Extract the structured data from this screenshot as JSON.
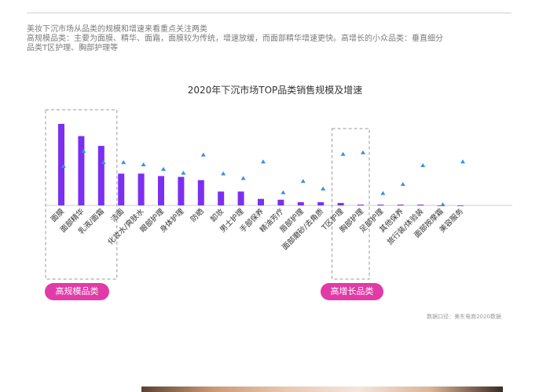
{
  "intro": {
    "line1": "美妆下沉市场从品类的规模和增速来看重点关注两类",
    "line2": "高规模品类：主要为面膜、精华、面霜，面膜较为传统，增速放缓，而面部精华增速更快。高增长的小众品类：垂直细分",
    "line3": "品类T区护理、胸部护理等"
  },
  "chart_data": {
    "type": "bar",
    "title": "2020年下沉市场TOP品类销售规模及增速",
    "categories": [
      "面膜",
      "面部精华",
      "乳液/面霜",
      "洁面",
      "化妆水/爽肤水",
      "眼部护理",
      "身体护理",
      "防晒",
      "卸妆",
      "男士护理",
      "手部保养",
      "精油芳疗",
      "唇部护理",
      "面部磨砂/去角质",
      "T区护理",
      "胸部护理",
      "足部护理",
      "其他保养",
      "旅行装/体验装",
      "面部按摩霜",
      "美容服务"
    ],
    "series": [
      {
        "values": [
          100,
          85,
          73,
          39,
          39,
          36,
          35,
          31,
          17,
          17,
          8,
          7,
          4,
          4,
          3,
          1,
          1,
          1,
          1,
          0,
          0
        ]
      },
      {
        "values": [
          52,
          72,
          57,
          57,
          54,
          48,
          43,
          67,
          42,
          36,
          58,
          17,
          32,
          22,
          68,
          70,
          16,
          28,
          53,
          1,
          58
        ]
      }
    ],
    "highlight_groups": [
      {
        "label": "高规模品类",
        "from": 0,
        "to": 2
      },
      {
        "label": "高增长品类",
        "from": 14,
        "to": 15
      }
    ],
    "source": "数据口径：美东电商2020数据",
    "bar_color": "#7b2ff0",
    "marker_color": "#3a8ee6",
    "label_color": "#333333"
  }
}
